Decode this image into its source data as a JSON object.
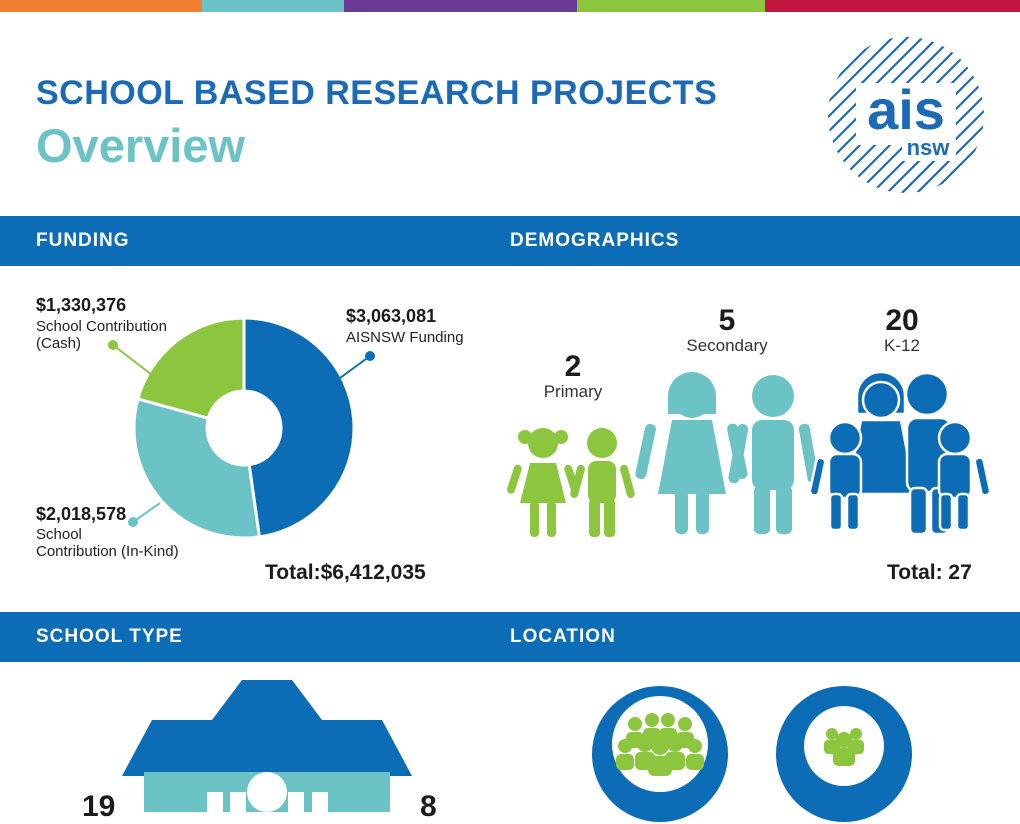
{
  "colors": {
    "dark_blue": "#0c6cb6",
    "light_green": "#8cc63f",
    "teal": "#6cc3c6",
    "title_blue": "#1c6ab5",
    "topbar": [
      "#f07f2f",
      "#6cc3c6",
      "#6a3a95",
      "#8cc63f",
      "#c0173f"
    ]
  },
  "header": {
    "title": "SCHOOL BASED RESEARCH PROJECTS",
    "subtitle": "Overview",
    "logo_name": "ais",
    "logo_sub": "nsw"
  },
  "funding": {
    "heading": "FUNDING",
    "segments": [
      {
        "amount": "$3,063,081",
        "label": "AISNSW Funding",
        "value": 3063081,
        "color": "#0c6cb6"
      },
      {
        "amount": "$2,018,578",
        "label": "School Contribution (In-Kind)",
        "value": 2018578,
        "color": "#6cc3c6"
      },
      {
        "amount": "$1,330,376",
        "label": "School Contribution (Cash)",
        "value": 1330376,
        "color": "#8cc63f"
      }
    ],
    "labels": {
      "aisnsw_amount": "$3,063,081",
      "aisnsw_desc": "AISNSW Funding",
      "cash_amount": "$1,330,376",
      "cash_desc_1": "School Contribution",
      "cash_desc_2": "(Cash)",
      "inkind_amount": "$2,018,578",
      "inkind_desc_1": "School",
      "inkind_desc_2": "Contribution (In-Kind)"
    },
    "total": "Total:$6,412,035"
  },
  "demographics": {
    "heading": "DEMOGRAPHICS",
    "groups": [
      {
        "count": "2",
        "label": "Primary"
      },
      {
        "count": "5",
        "label": "Secondary"
      },
      {
        "count": "20",
        "label": "K-12"
      }
    ],
    "total": "Total: 27"
  },
  "school_type": {
    "heading": "SCHOOL TYPE",
    "left_value": "19",
    "right_value": "8"
  },
  "location": {
    "heading": "LOCATION"
  }
}
